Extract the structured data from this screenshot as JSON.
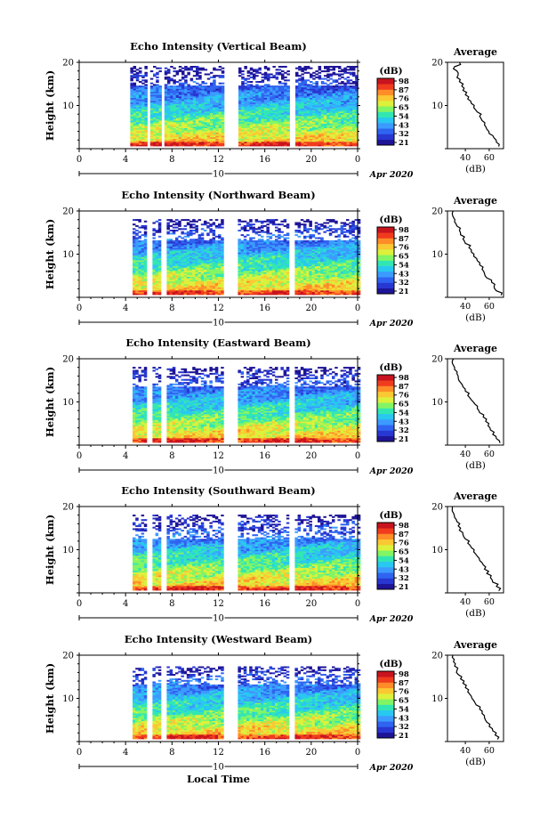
{
  "chart_data": {
    "type": "heatmap",
    "x_ticks": [
      "0",
      "4",
      "8",
      "12",
      "16",
      "20",
      "0"
    ],
    "xlim": [
      0,
      24
    ],
    "ylim": [
      0,
      20
    ],
    "y_ticks": [
      "10",
      "20"
    ],
    "ylabel": "Height (km)",
    "date_label": "10",
    "month_label": "Apr 2020",
    "xlabel": "Local Time",
    "colorbar": {
      "unit": "(dB)",
      "ticks": [
        "21",
        "32",
        "43",
        "54",
        "65",
        "76",
        "87",
        "98"
      ],
      "colors": [
        "#1e1496",
        "#2837d2",
        "#2f64f0",
        "#3c9bff",
        "#28c8f0",
        "#32e6b4",
        "#82f564",
        "#dcf03c",
        "#fac832",
        "#ff8c28",
        "#f03c1e",
        "#c8141e"
      ]
    },
    "average_title": "Average",
    "average_xlabel": "(dB)",
    "average_xticks": [
      "40",
      "60"
    ],
    "average_ticks_values": [
      40,
      60
    ],
    "average_xlim": [
      25,
      72
    ],
    "gaps_hours": [
      [
        5.8,
        6.1
      ],
      [
        6.9,
        7.3
      ],
      [
        12.3,
        13.6
      ],
      [
        17.9,
        18.4
      ]
    ],
    "panels": [
      {
        "title": "Echo Intensity (Vertical Beam)",
        "start_hour": 4.4,
        "top_km": 18.5,
        "scatter_km": 14.5,
        "profile": {
          "height_km": [
            1,
            2,
            3,
            4,
            5,
            6,
            7,
            8,
            9,
            10,
            11,
            12,
            13,
            14,
            15,
            16,
            17,
            18,
            19,
            20
          ],
          "db": [
            68,
            66,
            64,
            60,
            58,
            56,
            54,
            52,
            50,
            47,
            45,
            42,
            40,
            38,
            37,
            35,
            33,
            34,
            30,
            36
          ]
        }
      },
      {
        "title": "Echo Intensity (Northward Beam)",
        "start_hour": 4.6,
        "top_km": 17.5,
        "scatter_km": 13.0,
        "profile": {
          "height_km": [
            1,
            2,
            3,
            4,
            5,
            6,
            7,
            8,
            9,
            10,
            11,
            12,
            13,
            14,
            15,
            16,
            17,
            18,
            19,
            20
          ],
          "db": [
            70,
            66,
            64,
            62,
            58,
            56,
            54,
            52,
            50,
            47,
            45,
            43,
            40,
            38,
            36,
            35,
            33,
            31,
            30,
            29
          ]
        }
      },
      {
        "title": "Echo Intensity (Eastward Beam)",
        "start_hour": 4.6,
        "top_km": 17.5,
        "scatter_km": 13.5,
        "profile": {
          "height_km": [
            1,
            2,
            3,
            4,
            5,
            6,
            7,
            8,
            9,
            10,
            11,
            12,
            13,
            14,
            15,
            16,
            17,
            18,
            19,
            20
          ],
          "db": [
            69,
            66,
            63,
            61,
            59,
            57,
            55,
            52,
            50,
            48,
            45,
            42,
            40,
            38,
            36,
            34,
            33,
            31,
            30,
            29
          ]
        }
      },
      {
        "title": "Echo Intensity (Southward Beam)",
        "start_hour": 4.6,
        "top_km": 17.5,
        "scatter_km": 12.5,
        "profile": {
          "height_km": [
            1,
            2,
            3,
            4,
            5,
            6,
            7,
            8,
            9,
            10,
            11,
            12,
            13,
            14,
            15,
            16,
            17,
            18,
            19,
            20
          ],
          "db": [
            68,
            66,
            63,
            61,
            58,
            56,
            55,
            52,
            50,
            47,
            45,
            42,
            40,
            38,
            35,
            34,
            33,
            31,
            30,
            29
          ]
        }
      },
      {
        "title": "Echo Intensity (Westward Beam)",
        "start_hour": 4.6,
        "top_km": 17.0,
        "scatter_km": 13.0,
        "profile": {
          "height_km": [
            1,
            2,
            3,
            4,
            5,
            6,
            7,
            8,
            9,
            10,
            11,
            12,
            13,
            14,
            15,
            16,
            17,
            18,
            19,
            20
          ],
          "db": [
            67,
            65,
            63,
            60,
            58,
            56,
            54,
            52,
            49,
            47,
            45,
            42,
            40,
            38,
            36,
            34,
            33,
            31,
            30,
            29
          ]
        }
      }
    ]
  }
}
